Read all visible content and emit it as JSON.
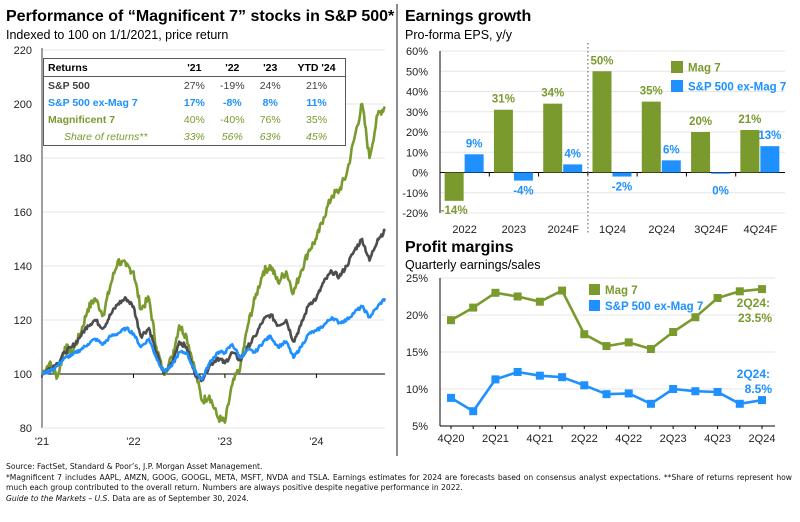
{
  "left_panel": {
    "title": "Performance of “Magnificent 7” stocks in S&P 500*",
    "subtitle": "Indexed to 100 on 1/1/2021, price return"
  },
  "returns_table": {
    "headers": [
      "Returns",
      "'21",
      "'22",
      "'23",
      "YTD '24"
    ],
    "rows": [
      {
        "label": "S&P 500",
        "values": [
          "27%",
          "-19%",
          "24%",
          "21%"
        ]
      },
      {
        "label": "S&P 500 ex-Mag 7",
        "values": [
          "17%",
          "-8%",
          "8%",
          "11%"
        ]
      },
      {
        "label": "Magnificent 7",
        "values": [
          "40%",
          "-40%",
          "76%",
          "35%"
        ]
      },
      {
        "label": "Share of returns**",
        "values": [
          "33%",
          "56%",
          "63%",
          "45%"
        ]
      }
    ]
  },
  "earnings_panel": {
    "title": "Earnings growth",
    "subtitle": "Pro-forma EPS, y/y"
  },
  "margins_panel": {
    "title": "Profit margins",
    "subtitle": "Quarterly earnings/sales"
  },
  "colors": {
    "mag7": "#7a9a2e",
    "ex_mag7": "#1e90ff",
    "sp500": "#4d4d4f",
    "grid": "#e6e6e6",
    "axis": "#595959"
  },
  "chart_data": [
    {
      "type": "line",
      "title": "Performance of “Magnificent 7” stocks in S&P 500*",
      "subtitle": "Indexed to 100 on 1/1/2021, price return",
      "xlabel": "",
      "ylabel": "",
      "x_ticks": [
        "'21",
        "'22",
        "'23",
        "'24"
      ],
      "y_ticks": [
        80,
        100,
        120,
        140,
        160,
        180,
        200,
        220
      ],
      "ylim": [
        80,
        220
      ],
      "xlim": [
        2021.0,
        2024.75
      ],
      "grid": true,
      "reference_line": 100,
      "x": [
        2021.0,
        2021.08,
        2021.17,
        2021.25,
        2021.33,
        2021.42,
        2021.5,
        2021.58,
        2021.67,
        2021.75,
        2021.83,
        2021.92,
        2022.0,
        2022.08,
        2022.17,
        2022.25,
        2022.33,
        2022.42,
        2022.5,
        2022.58,
        2022.67,
        2022.75,
        2022.83,
        2022.92,
        2023.0,
        2023.08,
        2023.17,
        2023.25,
        2023.33,
        2023.42,
        2023.5,
        2023.58,
        2023.67,
        2023.75,
        2023.83,
        2023.92,
        2024.0,
        2024.08,
        2024.17,
        2024.25,
        2024.33,
        2024.42,
        2024.5,
        2024.58,
        2024.67,
        2024.75
      ],
      "series": [
        {
          "name": "Magnificent 7",
          "color": "#7a9a2e",
          "values": [
            100,
            104,
            99,
            110,
            108,
            115,
            124,
            128,
            122,
            133,
            142,
            140,
            138,
            124,
            128,
            110,
            100,
            106,
            118,
            114,
            102,
            90,
            92,
            84,
            82,
            96,
            103,
            118,
            128,
            138,
            140,
            134,
            138,
            130,
            138,
            146,
            150,
            158,
            166,
            168,
            174,
            188,
            200,
            180,
            196,
            199
          ]
        },
        {
          "name": "S&P 500",
          "color": "#4d4d4f",
          "values": [
            100,
            102,
            104,
            108,
            110,
            114,
            118,
            120,
            117,
            122,
            126,
            128,
            125,
            114,
            117,
            108,
            100,
            104,
            112,
            110,
            100,
            98,
            103,
            106,
            104,
            108,
            105,
            110,
            114,
            120,
            122,
            118,
            120,
            112,
            118,
            126,
            128,
            134,
            138,
            136,
            140,
            146,
            150,
            142,
            150,
            153
          ]
        },
        {
          "name": "S&P 500 ex-Mag 7",
          "color": "#1e90ff",
          "values": [
            100,
            101,
            103,
            106,
            107,
            109,
            111,
            113,
            111,
            114,
            115,
            117,
            115,
            110,
            113,
            106,
            101,
            103,
            108,
            108,
            101,
            98,
            104,
            108,
            108,
            111,
            106,
            109,
            108,
            112,
            114,
            110,
            112,
            106,
            110,
            115,
            116,
            118,
            121,
            119,
            120,
            123,
            125,
            121,
            125,
            128
          ]
        }
      ]
    },
    {
      "type": "bar",
      "title": "Earnings growth",
      "subtitle": "Pro-forma EPS, y/y",
      "categories": [
        "2022",
        "2023",
        "2024F",
        "1Q24",
        "2Q24",
        "3Q24F",
        "4Q24F"
      ],
      "series": [
        {
          "name": "Mag 7",
          "color": "#7a9a2e",
          "values": [
            -14,
            31,
            34,
            50,
            35,
            20,
            21
          ],
          "labels": [
            "-14%",
            "31%",
            "34%",
            "50%",
            "35%",
            "20%",
            "21%"
          ]
        },
        {
          "name": "S&P 500 ex-Mag 7",
          "color": "#1e90ff",
          "values": [
            9,
            -4,
            4,
            -2,
            6,
            0,
            13
          ],
          "labels": [
            "9%",
            "-4%",
            "4%",
            "-2%",
            "6%",
            "0%",
            "13%"
          ]
        }
      ],
      "y_ticks": [
        "-20%",
        "-10%",
        "0%",
        "10%",
        "20%",
        "30%",
        "40%",
        "50%",
        "60%"
      ],
      "ylim": [
        -20,
        60
      ],
      "legend": "top-right",
      "grid": true,
      "divider_after_category": "2024F"
    },
    {
      "type": "line",
      "title": "Profit margins",
      "subtitle": "Quarterly earnings/sales",
      "x": [
        "4Q20",
        "1Q21",
        "2Q21",
        "3Q21",
        "4Q21",
        "1Q22",
        "2Q22",
        "3Q22",
        "4Q22",
        "1Q23",
        "2Q23",
        "3Q23",
        "4Q23",
        "1Q24",
        "2Q24"
      ],
      "x_ticks": [
        "4Q20",
        "2Q21",
        "4Q21",
        "2Q22",
        "4Q22",
        "2Q23",
        "4Q23",
        "2Q24"
      ],
      "series": [
        {
          "name": "Mag 7",
          "color": "#7a9a2e",
          "values": [
            19.3,
            21.0,
            23.0,
            22.5,
            21.8,
            23.3,
            17.4,
            15.8,
            16.3,
            15.4,
            17.7,
            19.7,
            22.3,
            23.2,
            23.5
          ],
          "end_label": [
            "2Q24:",
            "23.5%"
          ]
        },
        {
          "name": "S&P 500 ex-Mag 7",
          "color": "#1e90ff",
          "values": [
            8.8,
            7.0,
            11.3,
            12.3,
            11.8,
            11.6,
            10.5,
            9.3,
            9.4,
            8.0,
            10.0,
            9.7,
            9.6,
            8.0,
            8.5
          ],
          "end_label": [
            "2Q24:",
            "8.5%"
          ]
        }
      ],
      "y_ticks": [
        "5%",
        "10%",
        "15%",
        "20%",
        "25%"
      ],
      "ylim": [
        5,
        25
      ],
      "legend": "top-center",
      "grid": true
    }
  ],
  "footnotes": {
    "source": "Source: FactSet, Standard & Poor’s, J.P. Morgan Asset Management.",
    "note": "*Magnificent 7 includes AAPL, AMZN, GOOG, GOOGL, META, MSFT, NVDA and TSLA. Earnings estimates for 2024 are forecasts based on consensus analyst expectations. **Share of returns represent how much each group contributed to the overall return. Numbers are always positive despite negative performance in 2022.",
    "guide_title": "Guide to the Markets – U.S.",
    "guide_date": " Data are as of September 30, 2024."
  }
}
